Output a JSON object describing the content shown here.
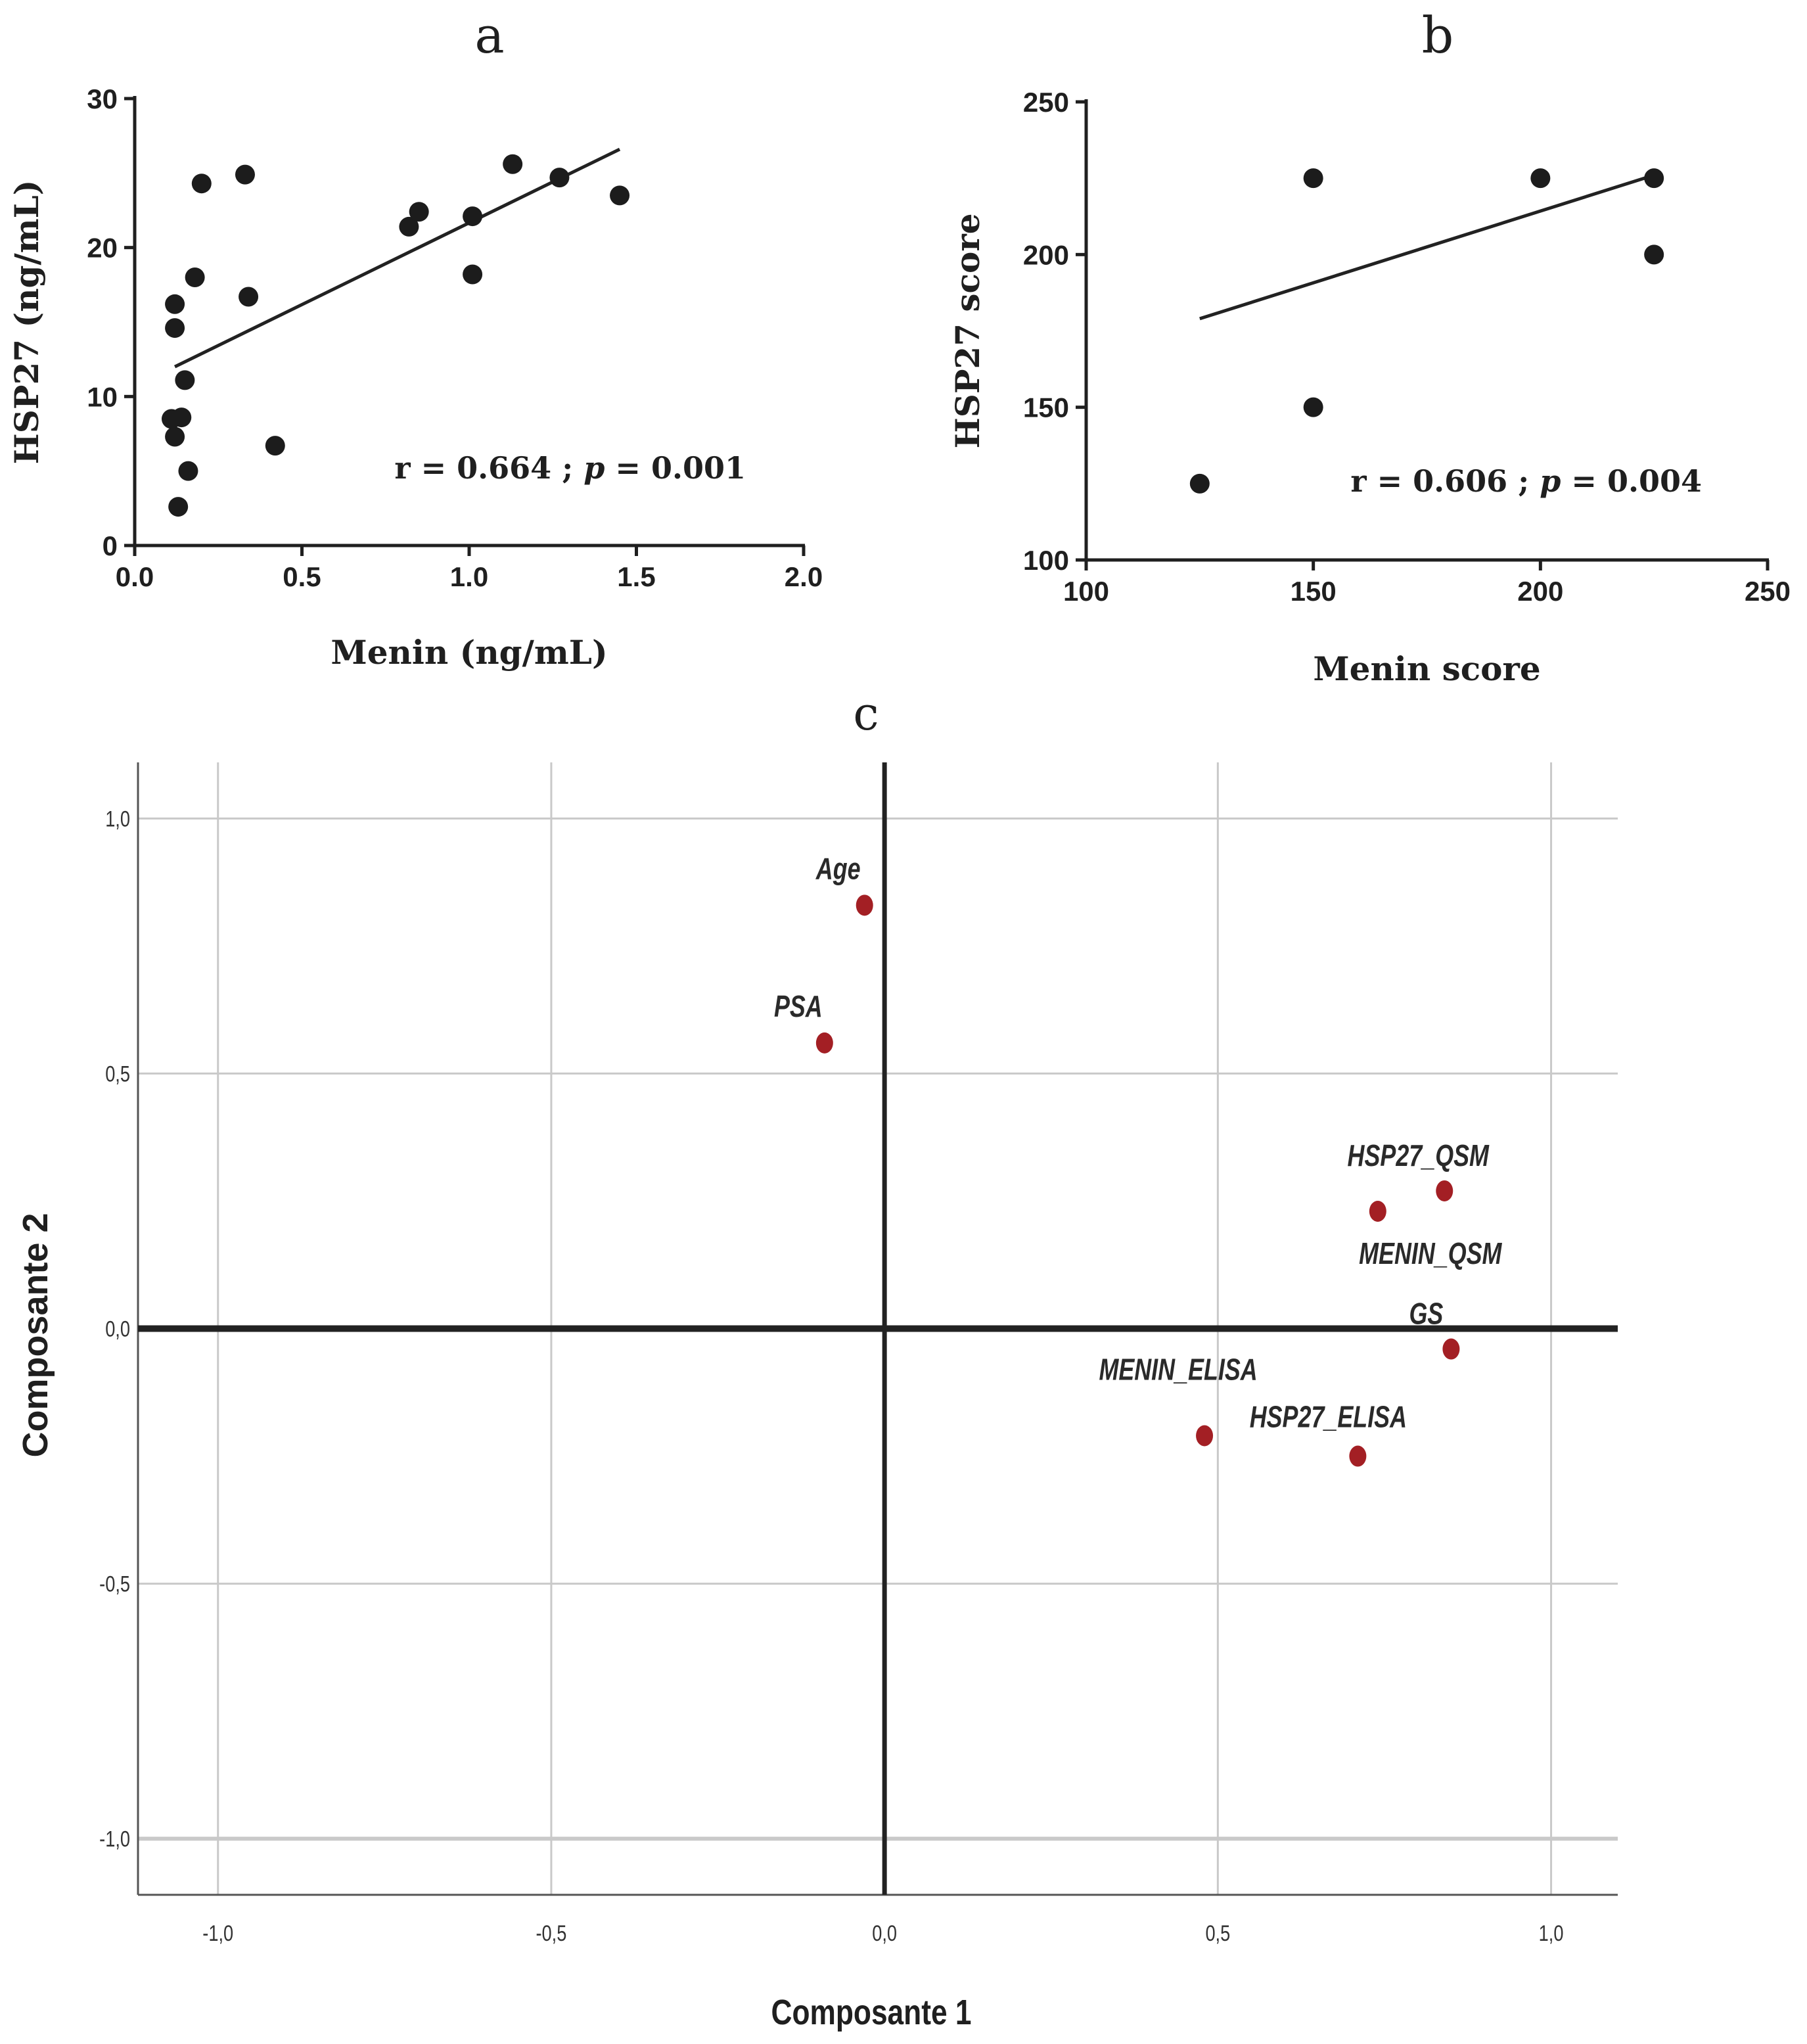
{
  "colors": {
    "panel_ab_point": "#1c1c1c",
    "panel_ab_line": "#222222",
    "panel_c_point": "#a31f24",
    "panel_c_axis": "#222222",
    "panel_c_grid": "#c9c9c9",
    "text": "#1f1f1f"
  },
  "chart_data": [
    {
      "panel": "a",
      "type": "scatter",
      "title": "a",
      "xlabel": "Menin (ng/mL)",
      "ylabel": "HSP27 (ng/mL)",
      "xlim": [
        0,
        2.0
      ],
      "ylim": [
        0,
        30
      ],
      "xticks": [
        0.0,
        0.5,
        1.0,
        1.5,
        2.0
      ],
      "xtick_labels": [
        "0.0",
        "0.5",
        "1.0",
        "1.5",
        "2.0"
      ],
      "yticks": [
        0,
        10,
        20,
        30
      ],
      "ytick_labels": [
        "0",
        "10",
        "20",
        "30"
      ],
      "grid": false,
      "annotation_parts": [
        "r = 0.664 ; ",
        "p",
        " = 0.001"
      ],
      "points": [
        [
          0.12,
          16.2
        ],
        [
          0.12,
          14.6
        ],
        [
          0.11,
          8.5
        ],
        [
          0.14,
          8.6
        ],
        [
          0.12,
          7.3
        ],
        [
          0.15,
          11.1
        ],
        [
          0.16,
          5.0
        ],
        [
          0.13,
          2.6
        ],
        [
          0.18,
          18.0
        ],
        [
          0.2,
          24.3
        ],
        [
          0.33,
          24.9
        ],
        [
          0.34,
          16.7
        ],
        [
          0.42,
          6.7
        ],
        [
          0.82,
          21.4
        ],
        [
          0.85,
          22.4
        ],
        [
          1.01,
          22.1
        ],
        [
          1.01,
          18.2
        ],
        [
          1.13,
          25.6
        ],
        [
          1.27,
          24.7
        ],
        [
          1.45,
          23.5
        ]
      ],
      "fit_line": [
        [
          0.12,
          12.0
        ],
        [
          1.45,
          26.6
        ]
      ]
    },
    {
      "panel": "b",
      "type": "scatter",
      "title": "b",
      "xlabel": "Menin score",
      "ylabel": "HSP27 score",
      "xlim": [
        100,
        250
      ],
      "ylim": [
        100,
        250
      ],
      "xticks": [
        100,
        150,
        200,
        250
      ],
      "xtick_labels": [
        "100",
        "150",
        "200",
        "250"
      ],
      "yticks": [
        100,
        150,
        200,
        250
      ],
      "ytick_labels": [
        "100",
        "150",
        "200",
        "250"
      ],
      "grid": false,
      "annotation_parts": [
        "r = 0.606 ; ",
        "p",
        " = 0.004"
      ],
      "points": [
        [
          125,
          125
        ],
        [
          150,
          225
        ],
        [
          150,
          150
        ],
        [
          200,
          225
        ],
        [
          225,
          225
        ],
        [
          225,
          200
        ]
      ],
      "fit_line": [
        [
          125,
          179
        ],
        [
          225,
          226
        ]
      ]
    },
    {
      "panel": "c",
      "type": "scatter",
      "title": "c",
      "xlabel": "Composante 1",
      "ylabel": "Composante 2",
      "xlim": [
        -1.12,
        1.1
      ],
      "ylim": [
        -1.11,
        1.11
      ],
      "xticks": [
        -1.0,
        -0.5,
        0.0,
        0.5,
        1.0
      ],
      "xtick_labels": [
        "-1,0",
        "-0,5",
        "0,0",
        "0,5",
        "1,0"
      ],
      "yticks": [
        -1.0,
        -0.5,
        0.0,
        0.5,
        1.0
      ],
      "ytick_labels": [
        "-1,0",
        "-0,5",
        "0,0",
        "0,5",
        "1,0"
      ],
      "grid": true,
      "points": [
        {
          "label": "Age",
          "x": -0.03,
          "y": 0.83
        },
        {
          "label": "PSA",
          "x": -0.09,
          "y": 0.56
        },
        {
          "label": "HSP27_QSM",
          "x": 0.84,
          "y": 0.27
        },
        {
          "label": "MENIN_QSM",
          "x": 0.74,
          "y": 0.23
        },
        {
          "label": "GS",
          "x": 0.85,
          "y": -0.04
        },
        {
          "label": "MENIN_ELISA",
          "x": 0.48,
          "y": -0.21
        },
        {
          "label": "HSP27_ELISA",
          "x": 0.71,
          "y": -0.25
        }
      ]
    }
  ]
}
